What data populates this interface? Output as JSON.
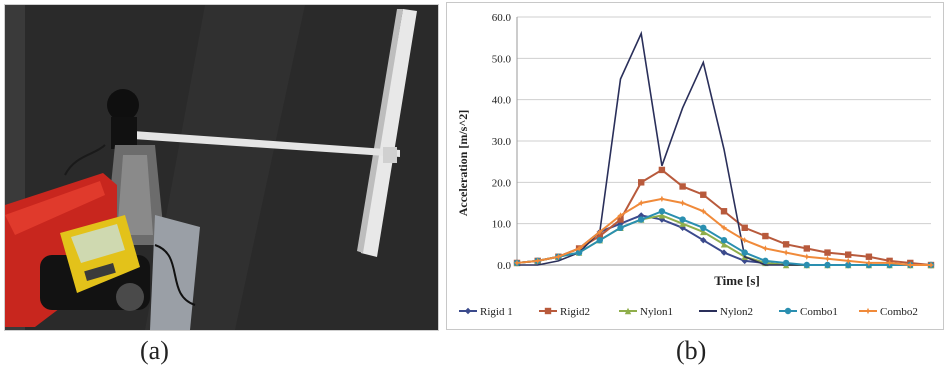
{
  "captions": {
    "a": "(a)",
    "b": "(b)"
  },
  "photo": {
    "description_icon": "experiment-setup-photo-icon"
  },
  "chart_data": {
    "type": "line",
    "xlabel": "Time [s]",
    "ylabel": "Acceleration [m/s^2]",
    "ylim": [
      0,
      60
    ],
    "yticks": [
      "0.0",
      "10.0",
      "20.0",
      "30.0",
      "40.0",
      "50.0",
      "60.0"
    ],
    "grid": true,
    "legend_position": "bottom",
    "x": [
      0,
      5,
      10,
      15,
      20,
      25,
      30,
      35,
      40,
      45,
      50,
      55,
      60,
      65,
      70,
      75,
      80,
      85,
      90,
      95,
      100
    ],
    "series": [
      {
        "name": "Rigid 1",
        "color": "#3b4a8c",
        "marker": "diamond",
        "values": [
          0.5,
          1,
          2,
          4,
          8,
          10,
          12,
          11,
          9,
          6,
          3,
          1,
          0.5,
          0,
          0,
          0,
          0,
          0,
          0,
          0,
          0
        ]
      },
      {
        "name": "Rigid2",
        "color": "#b85a3c",
        "marker": "square",
        "values": [
          0.5,
          1,
          2,
          4,
          7,
          11,
          20,
          23,
          19,
          17,
          13,
          9,
          7,
          5,
          4,
          3,
          2.5,
          2,
          1,
          0.5,
          0
        ]
      },
      {
        "name": "Nylon1",
        "color": "#8fae4b",
        "marker": "triangle",
        "values": [
          0.5,
          1,
          2,
          3,
          6,
          9,
          11,
          12,
          10,
          8,
          5,
          2,
          0.5,
          0,
          0,
          0,
          0,
          0,
          0,
          0,
          0
        ]
      },
      {
        "name": "Nylon2",
        "color": "#2a2f5a",
        "marker": "none",
        "values": [
          0,
          0,
          1,
          3,
          8,
          45,
          56,
          24,
          38,
          49,
          28,
          2,
          0,
          0,
          0,
          0,
          0,
          0,
          0,
          0,
          0
        ]
      },
      {
        "name": "Combo1",
        "color": "#2a8fb0",
        "marker": "circle",
        "values": [
          0.5,
          1,
          2,
          3,
          6,
          9,
          11,
          13,
          11,
          9,
          6,
          3,
          1,
          0.5,
          0,
          0,
          0,
          0,
          0,
          0,
          0
        ]
      },
      {
        "name": "Combo2",
        "color": "#f08a3a",
        "marker": "star",
        "values": [
          0.5,
          1,
          2,
          4,
          8,
          12,
          15,
          16,
          15,
          13,
          9,
          6,
          4,
          3,
          2,
          1.5,
          1,
          0.5,
          0.5,
          0,
          0
        ]
      }
    ]
  }
}
